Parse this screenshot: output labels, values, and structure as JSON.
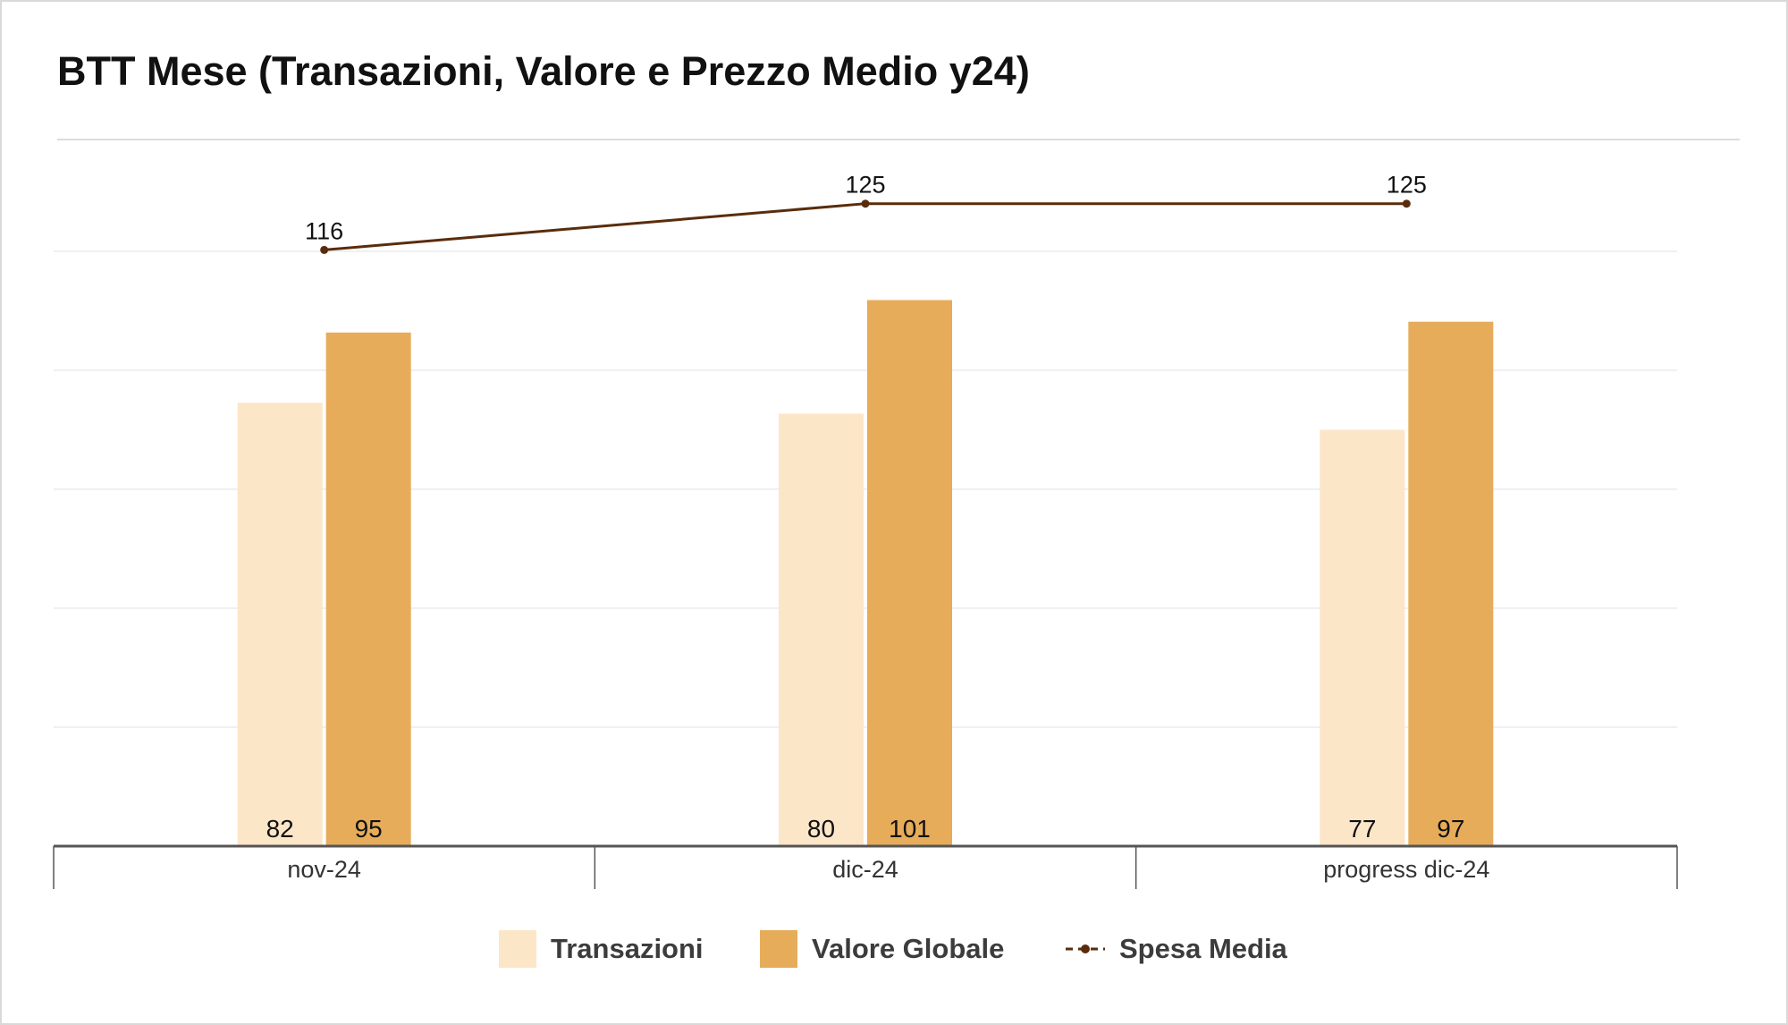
{
  "title": "BTT Mese (Transazioni, Valore e Prezzo Medio y24)",
  "colors": {
    "transazioni": "#fce6c8",
    "valore_globale": "#e6ac5a",
    "spesa_media": "#5a2c0c",
    "grid": "#ececec",
    "axis": "#555555",
    "text": "#111111"
  },
  "legend": [
    {
      "label": "Transazioni",
      "key": "transazioni",
      "kind": "swatch"
    },
    {
      "label": "Valore Globale",
      "key": "valore_globale",
      "kind": "swatch"
    },
    {
      "label": "Spesa Media",
      "key": "spesa_media",
      "kind": "line"
    }
  ],
  "chart_data": {
    "type": "bar",
    "categories": [
      "nov-24",
      "dic-24",
      "progress dic-24"
    ],
    "series": [
      {
        "name": "Transazioni",
        "type": "bar",
        "values": [
          82,
          80,
          77
        ]
      },
      {
        "name": "Valore Globale",
        "type": "bar",
        "values": [
          95,
          101,
          97
        ]
      },
      {
        "name": "Spesa Media",
        "type": "line",
        "values": [
          116,
          125,
          125
        ]
      }
    ],
    "ylim": [
      0,
      135
    ],
    "line_ylim": [
      0,
      142
    ],
    "grid": true,
    "legend_position": "bottom"
  }
}
